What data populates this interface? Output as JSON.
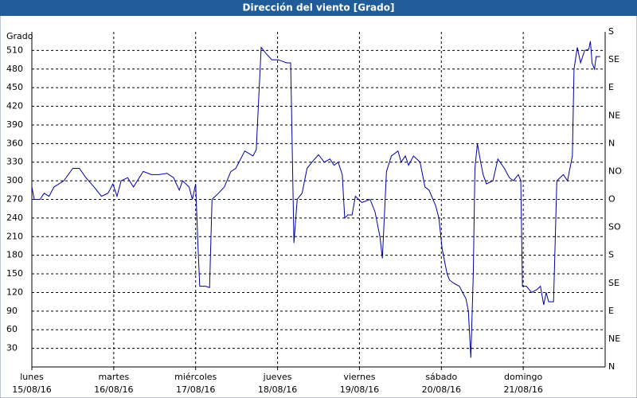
{
  "chart_data": {
    "type": "line",
    "title": "Dirección del viento [Grado]",
    "y_label": "Grado",
    "xlim": [
      0,
      7
    ],
    "xticks": [
      {
        "value": 0,
        "label": "lunes",
        "date": "15/08/16"
      },
      {
        "value": 1,
        "label": "martes",
        "date": "16/08/16"
      },
      {
        "value": 2,
        "label": "miércoles",
        "date": "17/08/16"
      },
      {
        "value": 3,
        "label": "jueves",
        "date": "18/08/16"
      },
      {
        "value": 4,
        "label": "viernes",
        "date": "19/08/16"
      },
      {
        "value": 5,
        "label": "sábado",
        "date": "20/08/16"
      },
      {
        "value": 6,
        "label": "domingo",
        "date": "21/08/16"
      }
    ],
    "ylim": [
      0,
      540
    ],
    "yticks": [
      30,
      60,
      90,
      120,
      150,
      180,
      210,
      240,
      270,
      300,
      330,
      360,
      390,
      420,
      450,
      480,
      510
    ],
    "y2lim": [
      0,
      540
    ],
    "y2ticks": [
      {
        "value": 0,
        "label": "N"
      },
      {
        "value": 45,
        "label": "NE"
      },
      {
        "value": 90,
        "label": "E"
      },
      {
        "value": 135,
        "label": "SE"
      },
      {
        "value": 180,
        "label": "S"
      },
      {
        "value": 225,
        "label": "SO"
      },
      {
        "value": 270,
        "label": "O"
      },
      {
        "value": 315,
        "label": "NO"
      },
      {
        "value": 360,
        "label": "N"
      },
      {
        "value": 405,
        "label": "NE"
      },
      {
        "value": 450,
        "label": "E"
      },
      {
        "value": 495,
        "label": "SE"
      },
      {
        "value": 540,
        "label": "S"
      }
    ],
    "grid": true,
    "series": [
      {
        "name": "Dirección del viento",
        "color": "#0000a0",
        "x": [
          0,
          0.03,
          0.1,
          0.15,
          0.21,
          0.27,
          0.39,
          0.5,
          0.58,
          0.66,
          0.76,
          0.85,
          0.93,
          0.99,
          1.04,
          1.09,
          1.17,
          1.24,
          1.36,
          1.46,
          1.55,
          1.65,
          1.73,
          1.8,
          1.84,
          1.92,
          1.96,
          2.0,
          2.03,
          2.05,
          2.12,
          2.17,
          2.2,
          2.28,
          2.35,
          2.43,
          2.49,
          2.6,
          2.7,
          2.74,
          2.8,
          2.86,
          2.93,
          3.01,
          3.11,
          3.16,
          3.17,
          3.2,
          3.24,
          3.3,
          3.36,
          3.42,
          3.5,
          3.57,
          3.64,
          3.69,
          3.74,
          3.79,
          3.82,
          3.86,
          3.91,
          3.95,
          4.03,
          4.13,
          4.19,
          4.25,
          4.28,
          4.33,
          4.39,
          4.47,
          4.51,
          4.56,
          4.6,
          4.66,
          4.74,
          4.8,
          4.85,
          4.93,
          4.97,
          5.01,
          5.07,
          5.1,
          5.15,
          5.22,
          5.3,
          5.33,
          5.36,
          5.39,
          5.41,
          5.44,
          5.48,
          5.51,
          5.55,
          5.63,
          5.69,
          5.77,
          5.83,
          5.88,
          5.94,
          5.97,
          5.99,
          6.04,
          6.1,
          6.17,
          6.21,
          6.25,
          6.28,
          6.31,
          6.37,
          6.41,
          6.49,
          6.54,
          6.6,
          6.62,
          6.66,
          6.7,
          6.75,
          6.8,
          6.82,
          6.84,
          6.87,
          6.89,
          6.94
        ],
        "values": [
          290,
          270,
          270,
          280,
          275,
          290,
          300,
          320,
          320,
          305,
          290,
          275,
          280,
          295,
          275,
          300,
          305,
          290,
          315,
          310,
          310,
          312,
          305,
          285,
          300,
          290,
          270,
          295,
          190,
          130,
          130,
          128,
          270,
          280,
          290,
          315,
          320,
          348,
          340,
          350,
          515,
          505,
          495,
          495,
          490,
          490,
          420,
          200,
          270,
          280,
          320,
          330,
          342,
          330,
          335,
          325,
          330,
          310,
          240,
          245,
          245,
          275,
          265,
          270,
          250,
          210,
          175,
          315,
          340,
          348,
          330,
          340,
          325,
          340,
          330,
          290,
          285,
          260,
          240,
          190,
          150,
          140,
          135,
          130,
          110,
          90,
          15,
          150,
          320,
          360,
          330,
          310,
          295,
          300,
          335,
          320,
          305,
          300,
          310,
          300,
          130,
          130,
          120,
          125,
          130,
          100,
          120,
          105,
          105,
          300,
          310,
          300,
          340,
          480,
          515,
          490,
          510,
          512,
          525,
          490,
          480,
          500,
          500
        ]
      }
    ]
  }
}
